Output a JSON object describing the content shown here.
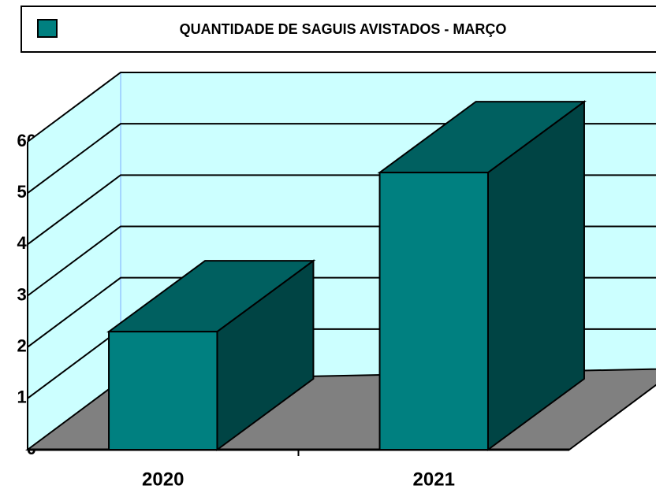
{
  "chart_data": {
    "type": "bar3d",
    "categories": [
      "2020",
      "2021"
    ],
    "series": [
      {
        "name": "QUANTIDADE DE SAGUIS AVISTADOS -  MARÇO",
        "color": "#008080",
        "values": [
          23,
          54
        ]
      }
    ],
    "ylim": [
      0,
      60
    ],
    "yticks": [
      0,
      10,
      20,
      30,
      40,
      50,
      60
    ],
    "grid": true,
    "legend": "top"
  }
}
